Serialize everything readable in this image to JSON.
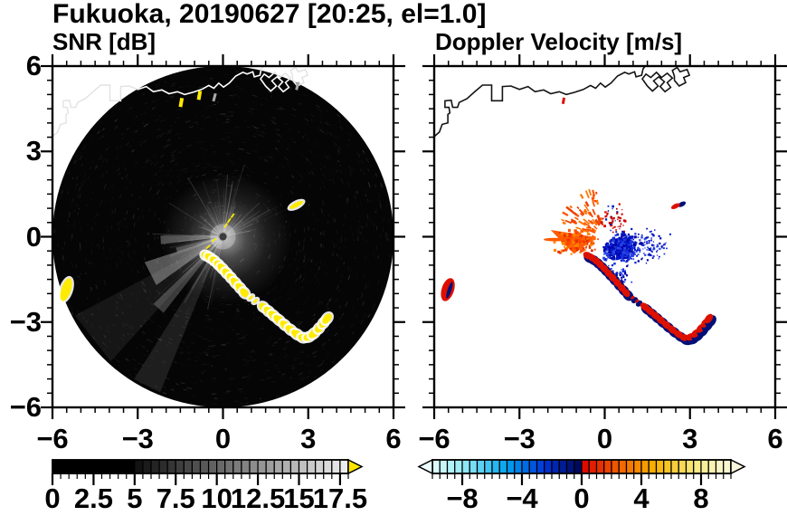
{
  "title": "Fukuoka, 20190627 [20:25, el=1.0]",
  "panels": {
    "snr": {
      "label": "SNR [dB]"
    },
    "vel": {
      "label": "Doppler Velocity [m/s]"
    }
  },
  "axes": {
    "x_range": [
      -6,
      6
    ],
    "y_range": [
      -6,
      6
    ],
    "tick_values": [
      -6,
      -3,
      0,
      3,
      6
    ],
    "xtick_labels": [
      "−6",
      "−3",
      "0",
      "3",
      "6"
    ],
    "ytick_labels": [
      "6",
      "3",
      "0",
      "−3",
      "−6"
    ],
    "minor_step": 0.5
  },
  "snr_colorbar": {
    "min": 0,
    "max": 18,
    "segment_step": 0.5,
    "solid_black_until": 5,
    "label_values": [
      0,
      2.5,
      5,
      7.5,
      10,
      12.5,
      15,
      17.5
    ],
    "labels": [
      "0",
      "2.5",
      "5",
      "7.5",
      "10",
      "12.5",
      "15",
      "17.5"
    ],
    "major_tick_step": 2.5,
    "black": "#000000",
    "ramp_start": "#0E0E0E",
    "ramp_end": "#F0F0F0",
    "arrow_color": "#FFE600"
  },
  "vel_colorbar": {
    "min": -10,
    "max": 10,
    "segment_step": 0.5,
    "label_values": [
      -8,
      -4,
      0,
      4,
      8
    ],
    "labels": [
      "−8",
      "−4",
      "0",
      "4",
      "8"
    ],
    "major_tick_step": 4,
    "anchors": [
      [
        -10,
        "#E2FDFD"
      ],
      [
        -7.5,
        "#84E4F4"
      ],
      [
        -5,
        "#00A2F0"
      ],
      [
        -2.5,
        "#0034D8"
      ],
      [
        -0.01,
        "#000550"
      ],
      [
        0,
        "#DC0000"
      ],
      [
        2.5,
        "#F26000"
      ],
      [
        5,
        "#F8B400"
      ],
      [
        7.5,
        "#F8E87A"
      ],
      [
        9.5,
        "#F8F6D0"
      ]
    ],
    "arrow_left_color": "#EAFEFE",
    "arrow_right_color": "#F8F6DC"
  },
  "colors": {
    "background": "#FFFFFF",
    "frame": "#000000",
    "disk": "#050505",
    "coast_snr": "#FFFFFF",
    "coast_faint": "#E2E2E2",
    "coast_vel": "#141414",
    "echo_yellow": "#FFEB00",
    "halo_white": "#FFFFFF",
    "doppler_red": "#DD1000",
    "doppler_navy": "#001078",
    "doppler_blue": "#1030D0",
    "doppler_orange": "#FF5A00",
    "gray_dash": "#A8A8A8",
    "center_dot": "#3C3C3C"
  },
  "chart_data": {
    "type": "radar_ppi_pair",
    "site": "Fukuoka",
    "date": "20190627",
    "time": "20:25",
    "elevation_deg": 1.0,
    "x_range": [
      -6,
      6
    ],
    "y_range": [
      -6,
      6
    ],
    "coast_main": [
      [
        -6.0,
        3.52
      ],
      [
        -5.82,
        3.68
      ],
      [
        -5.72,
        3.95
      ],
      [
        -5.52,
        4.0
      ],
      [
        -5.52,
        4.3
      ],
      [
        -5.45,
        4.35
      ],
      [
        -5.48,
        4.55
      ],
      [
        -5.62,
        4.55
      ],
      [
        -5.62,
        4.78
      ],
      [
        -5.4,
        4.8
      ],
      [
        -5.35,
        4.55
      ],
      [
        -5.18,
        4.55
      ],
      [
        -5.12,
        4.72
      ],
      [
        -4.85,
        4.85
      ],
      [
        -4.55,
        5.12
      ],
      [
        -4.3,
        5.33
      ],
      [
        -3.98,
        5.33
      ],
      [
        -3.98,
        4.78
      ],
      [
        -3.6,
        4.78
      ],
      [
        -3.6,
        5.28
      ],
      [
        -3.3,
        5.3
      ],
      [
        -3.0,
        5.18
      ],
      [
        -2.7,
        5.28
      ],
      [
        -2.45,
        5.1
      ],
      [
        -2.15,
        5.16
      ],
      [
        -1.9,
        5.03
      ],
      [
        -1.6,
        5.1
      ],
      [
        -1.35,
        5.0
      ],
      [
        -1.05,
        5.08
      ],
      [
        -0.75,
        5.18
      ],
      [
        -0.5,
        5.32
      ],
      [
        -0.32,
        5.22
      ],
      [
        -0.15,
        5.4
      ],
      [
        0.02,
        5.26
      ],
      [
        0.22,
        5.4
      ],
      [
        0.45,
        5.65
      ],
      [
        0.7,
        5.78
      ],
      [
        0.85,
        5.72
      ],
      [
        1.05,
        5.8
      ],
      [
        1.1,
        5.62
      ],
      [
        1.3,
        5.68
      ],
      [
        1.35,
        5.9
      ],
      [
        1.42,
        6.0
      ]
    ],
    "harbor": [
      [
        [
          1.5,
          5.3
        ],
        [
          1.68,
          5.12
        ],
        [
          1.88,
          5.3
        ],
        [
          1.72,
          5.48
        ],
        [
          1.9,
          5.62
        ],
        [
          2.1,
          5.45
        ],
        [
          1.95,
          5.28
        ],
        [
          2.12,
          5.1
        ],
        [
          2.32,
          5.25
        ],
        [
          2.2,
          5.42
        ],
        [
          2.38,
          5.58
        ],
        [
          2.2,
          5.75
        ],
        [
          2.0,
          5.6
        ],
        [
          1.82,
          5.78
        ],
        [
          1.62,
          5.6
        ],
        [
          1.45,
          5.72
        ],
        [
          1.32,
          5.55
        ],
        [
          1.5,
          5.3
        ]
      ],
      [
        [
          2.45,
          5.5
        ],
        [
          2.62,
          5.3
        ],
        [
          2.85,
          5.42
        ],
        [
          2.78,
          5.6
        ],
        [
          2.98,
          5.68
        ],
        [
          2.9,
          5.88
        ],
        [
          2.65,
          5.8
        ],
        [
          2.55,
          5.95
        ],
        [
          2.38,
          5.85
        ],
        [
          2.45,
          5.65
        ],
        [
          2.45,
          5.5
        ]
      ]
    ],
    "echo_chain_upper": [
      [
        -0.6,
        -0.66
      ],
      [
        -0.45,
        -0.74
      ],
      [
        -0.3,
        -0.85
      ],
      [
        -0.16,
        -0.98
      ],
      [
        -0.02,
        -1.12
      ],
      [
        0.13,
        -1.28
      ],
      [
        0.28,
        -1.44
      ],
      [
        0.44,
        -1.62
      ],
      [
        0.6,
        -1.8
      ],
      [
        0.75,
        -1.97
      ]
    ],
    "echo_chain_gap": [
      [
        0.98,
        -2.14
      ],
      [
        1.14,
        -2.26
      ]
    ],
    "echo_chain_lower": [
      [
        1.42,
        -2.47
      ],
      [
        1.6,
        -2.62
      ],
      [
        1.78,
        -2.77
      ],
      [
        1.97,
        -2.93
      ],
      [
        2.17,
        -3.1
      ],
      [
        2.38,
        -3.27
      ],
      [
        2.6,
        -3.43
      ],
      [
        2.82,
        -3.55
      ],
      [
        3.02,
        -3.52
      ],
      [
        3.2,
        -3.4
      ],
      [
        3.38,
        -3.22
      ],
      [
        3.54,
        -3.03
      ],
      [
        3.66,
        -2.88
      ]
    ],
    "edge_echo": {
      "x": -5.52,
      "y": -1.86,
      "rx": 0.17,
      "ry": 0.42,
      "rot": 18
    },
    "east_echo": {
      "x": 2.58,
      "y": 1.12,
      "rx": 0.27,
      "ry": 0.08,
      "rot": -27
    },
    "coast_echo_yellow": [
      [
        -1.47,
        4.72
      ],
      [
        -0.83,
        4.97
      ]
    ],
    "coast_echo_gray": [
      [
        -0.3,
        4.9
      ],
      [
        2.62,
        5.3
      ]
    ],
    "coast_echo_red": [
      [
        -1.45,
        4.78
      ]
    ],
    "snr_center": {
      "glow": {
        "x": 0.12,
        "y": -0.08,
        "r": 2.3
      },
      "center_dot_r": 0.13,
      "beam_wedges": [
        {
          "az": 207,
          "half": 9,
          "len": 2.9,
          "op": 0.32
        },
        {
          "az": 183,
          "half": 4,
          "len": 2.2,
          "op": 0.28
        },
        {
          "az": 228,
          "half": 4,
          "len": 3.4,
          "op": 0.22
        },
        {
          "az": 196,
          "half": 3,
          "len": 1.7,
          "op": 0.25
        },
        {
          "az": 243,
          "half": 5,
          "len": 5.9,
          "op": 0.1
        },
        {
          "az": 218,
          "half": 10,
          "len": 5.9,
          "op": 0.07
        }
      ],
      "yellow_dashes": [
        [
          -0.32,
          -0.12,
          40
        ],
        [
          -0.52,
          -0.36,
          40
        ],
        [
          0.1,
          0.4,
          55
        ],
        [
          0.22,
          0.57,
          55
        ],
        [
          0.34,
          0.74,
          55
        ]
      ],
      "speckle_count": 1500,
      "ray_count": 95,
      "seed": 20190627
    },
    "vel_center": {
      "hole_r": 0.2,
      "blue_core": {
        "x": 0.55,
        "y": -0.38,
        "sx": 0.42,
        "sy": 0.33,
        "n": 430
      },
      "blue_tail": {
        "x": 1.25,
        "y": -0.3,
        "sx": 0.75,
        "sy": 0.42,
        "n": 170
      },
      "blue_lower": {
        "x": 0.5,
        "y": -1.25,
        "sx": 0.3,
        "sy": 0.28,
        "n": 45
      },
      "red_top": {
        "x": 0.3,
        "y": 0.6,
        "sx": 0.32,
        "sy": 0.38,
        "n": 55
      },
      "orange_wedge": [
        [
          -0.3,
          -0.02
        ],
        [
          -1.9,
          0.24
        ],
        [
          -1.5,
          -0.18
        ],
        [
          -1.08,
          -0.6
        ]
      ],
      "orange_fringe": {
        "x": -1.0,
        "y": -0.15,
        "sx": 0.5,
        "sy": 0.3,
        "n": 130
      },
      "orange_streak": {
        "x": -1.75,
        "y": -0.1,
        "rx": 0.4,
        "ry": 0.06
      },
      "orange_rays": {
        "n": 60,
        "az_min": 100,
        "az_max": 165,
        "r_min": 0.35,
        "r_max": 1.55
      },
      "seed": 2025
    }
  }
}
